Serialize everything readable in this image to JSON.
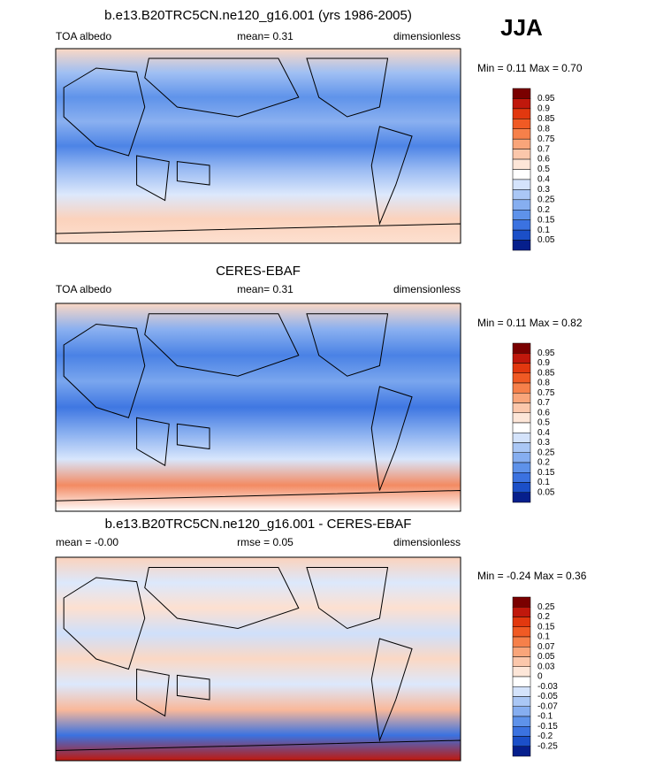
{
  "season": "JJA",
  "panels": [
    {
      "title": "b.e13.B20TRC5CN.ne120_g16.001 (yrs 1986-2005)",
      "left": "TOA albedo",
      "center": "mean=  0.31",
      "right": "dimensionless",
      "minmax": "Min =  0.11 Max =  0.70",
      "colorbar": [
        "0.95",
        "0.9",
        "0.85",
        "0.8",
        "0.75",
        "0.7",
        "0.6",
        "0.5",
        "0.4",
        "0.3",
        "0.25",
        "0.2",
        "0.15",
        "0.1",
        "0.05"
      ],
      "colors": [
        "#7a0000",
        "#c0180c",
        "#e2380f",
        "#f05a24",
        "#f6804a",
        "#f9a57a",
        "#fbc7ab",
        "#fde6d8",
        "#ffffff",
        "#d4e3fb",
        "#aac7f5",
        "#86aef0",
        "#5e92ea",
        "#3b72e0",
        "#1b4fc8",
        "#061f8c"
      ],
      "map": [
        "#fbd8c4",
        "#9fbff3",
        "#5f93ea",
        "#8ab0f0",
        "#4d84e6",
        "#9cbcf3",
        "#dce8fc",
        "#fbd2bc",
        "#fde0d0"
      ]
    },
    {
      "title": "CERES-EBAF",
      "left": "TOA albedo",
      "center": "mean=  0.31",
      "right": "dimensionless",
      "minmax": "Min =  0.11 Max =  0.82",
      "colorbar": [
        "0.95",
        "0.9",
        "0.85",
        "0.8",
        "0.75",
        "0.7",
        "0.6",
        "0.5",
        "0.4",
        "0.3",
        "0.25",
        "0.2",
        "0.15",
        "0.1",
        "0.05"
      ],
      "colors": [
        "#7a0000",
        "#c0180c",
        "#e2380f",
        "#f05a24",
        "#f6804a",
        "#f9a57a",
        "#fbc7ab",
        "#fde6d8",
        "#ffffff",
        "#d4e3fb",
        "#aac7f5",
        "#86aef0",
        "#5e92ea",
        "#3b72e0",
        "#1b4fc8",
        "#061f8c"
      ],
      "map": [
        "#fbd8c4",
        "#8ab0f0",
        "#4a82e5",
        "#7aa6ee",
        "#3f77e2",
        "#8ab0f0",
        "#d8e6fc",
        "#f38a62",
        "#ffffff"
      ]
    },
    {
      "title": "b.e13.B20TRC5CN.ne120_g16.001 - CERES-EBAF",
      "left": "mean =  -0.00",
      "center": "rmse =   0.05",
      "right": "dimensionless",
      "minmax": "Min =  -0.24 Max =  0.36",
      "colorbar": [
        "0.25",
        "0.2",
        "0.15",
        "0.1",
        "0.07",
        "0.05",
        "0.03",
        "0",
        "-0.03",
        "-0.05",
        "-0.07",
        "-0.1",
        "-0.15",
        "-0.2",
        "-0.25"
      ],
      "colors": [
        "#7a0000",
        "#c0180c",
        "#e2380f",
        "#f05a24",
        "#f6804a",
        "#f9a57a",
        "#fbc7ab",
        "#fde6d8",
        "#ffffff",
        "#d4e3fb",
        "#aac7f5",
        "#86aef0",
        "#5e92ea",
        "#3b72e0",
        "#1b4fc8",
        "#061f8c"
      ],
      "map": [
        "#fbd2bc",
        "#dce8fc",
        "#fde0d0",
        "#cfe0fb",
        "#fbd8c4",
        "#dce8fc",
        "#f9b89a",
        "#3b72e0",
        "#c0180c"
      ]
    }
  ]
}
